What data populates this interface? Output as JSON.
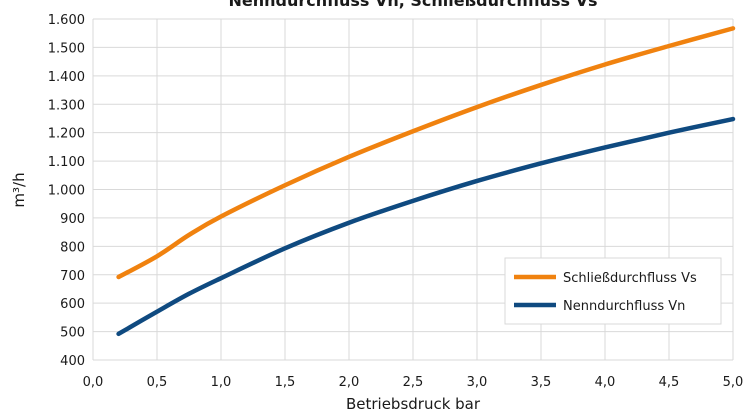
{
  "chart_data": {
    "type": "line",
    "title": "Nenndurchfluss Vn, Schließdurchfluss Vs",
    "xlabel": "Betriebsdruck bar",
    "ylabel": "m³/h",
    "xlim": [
      0,
      5
    ],
    "ylim": [
      400,
      1600
    ],
    "x_ticks": [
      "0,0",
      "0,5",
      "1,0",
      "1,5",
      "2,0",
      "2,5",
      "3,0",
      "3,5",
      "4,0",
      "4,5",
      "5,0"
    ],
    "y_ticks": [
      "400",
      "500",
      "600",
      "700",
      "800",
      "900",
      "1.000",
      "1.100",
      "1.200",
      "1.300",
      "1.400",
      "1.500",
      "1.600"
    ],
    "grid": true,
    "legend_position": "bottom-right",
    "series": [
      {
        "name": "Schließdurchfluss Vs",
        "color": "#f0820f",
        "x": [
          0.2,
          0.5,
          0.75,
          1.0,
          1.5,
          2.0,
          2.5,
          3.0,
          3.5,
          4.0,
          4.5,
          5.0
        ],
        "values": [
          692,
          765,
          840,
          905,
          1015,
          1115,
          1205,
          1290,
          1368,
          1440,
          1505,
          1567
        ]
      },
      {
        "name": "Nenndurchfluss Vn",
        "color": "#0f4a80",
        "x": [
          0.2,
          0.5,
          0.75,
          1.0,
          1.5,
          2.0,
          2.5,
          3.0,
          3.5,
          4.0,
          4.5,
          5.0
        ],
        "values": [
          492,
          570,
          633,
          688,
          793,
          883,
          960,
          1030,
          1092,
          1148,
          1200,
          1248
        ]
      }
    ]
  }
}
